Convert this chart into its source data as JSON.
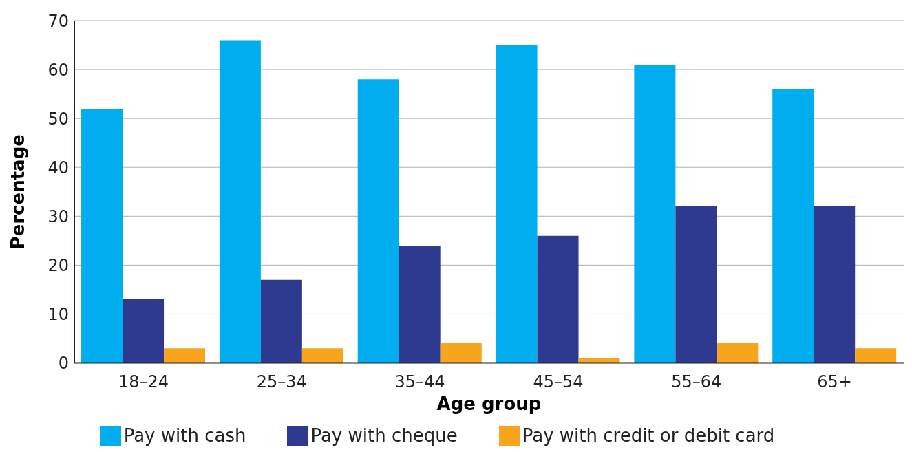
{
  "chart_data": {
    "type": "bar",
    "xlabel": "Age group",
    "ylabel": "Percentage",
    "categories": [
      "18–24",
      "25–34",
      "35–44",
      "45–54",
      "55–64",
      "65+"
    ],
    "series": [
      {
        "name": "Pay with cash",
        "color": "#00aeef",
        "values": [
          52,
          66,
          58,
          65,
          61,
          56
        ]
      },
      {
        "name": "Pay with cheque",
        "color": "#2e3a8f",
        "values": [
          13,
          17,
          24,
          26,
          32,
          32
        ]
      },
      {
        "name": "Pay with credit or debit card",
        "color": "#f7a51c",
        "values": [
          3,
          3,
          4,
          1,
          4,
          3
        ]
      }
    ],
    "ylim": [
      0,
      70
    ],
    "yticks": [
      0,
      10,
      20,
      30,
      40,
      50,
      60,
      70
    ],
    "grid": "y",
    "legend": "bottom"
  }
}
